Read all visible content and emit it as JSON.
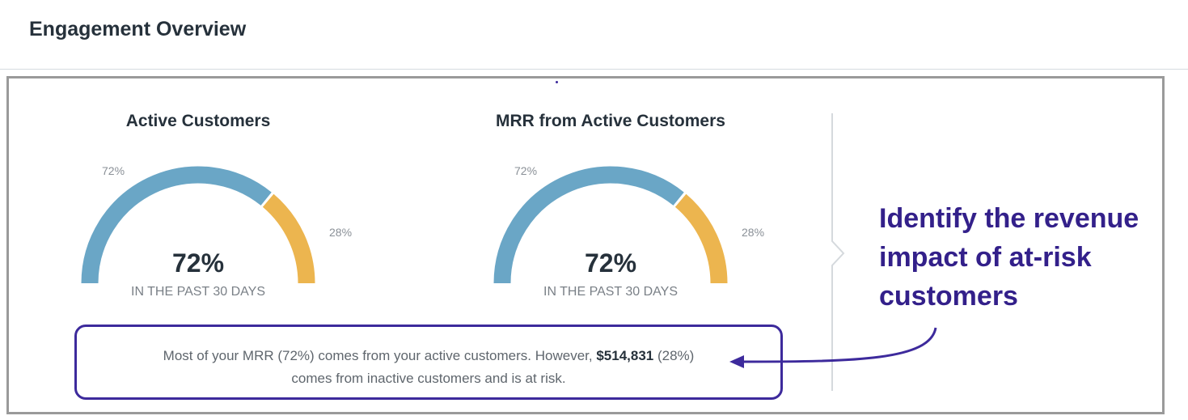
{
  "header": {
    "title": "Engagement Overview"
  },
  "colors": {
    "active": "#6aa6c6",
    "inactive": "#ecb54f",
    "accent": "#3d2a9c"
  },
  "gauges": [
    {
      "title": "Active Customers",
      "active_pct": 72,
      "active_label": "72%",
      "inactive_label": "28%",
      "center_value": "72%",
      "subtitle": "IN THE PAST 30 DAYS"
    },
    {
      "title": "MRR from Active Customers",
      "active_pct": 72,
      "active_label": "72%",
      "inactive_label": "28%",
      "center_value": "72%",
      "subtitle": "IN THE PAST 30 DAYS"
    }
  ],
  "summary": {
    "part1": "Most of your MRR (72%) comes from your active customers. However, ",
    "amount": "$514,831",
    "part2": " (28%)",
    "line2": "comes from inactive customers and is at risk."
  },
  "callout": {
    "text": "Identify the revenue impact of at-risk customers"
  }
}
